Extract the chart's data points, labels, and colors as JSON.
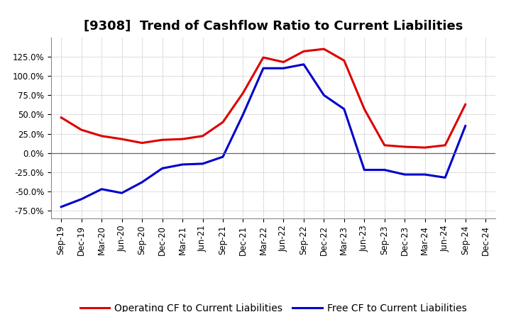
{
  "title": "[9308]  Trend of Cashflow Ratio to Current Liabilities",
  "x_labels": [
    "Sep-19",
    "Dec-19",
    "Mar-20",
    "Jun-20",
    "Sep-20",
    "Dec-20",
    "Mar-21",
    "Jun-21",
    "Sep-21",
    "Dec-21",
    "Mar-22",
    "Jun-22",
    "Sep-22",
    "Dec-22",
    "Mar-23",
    "Jun-23",
    "Sep-23",
    "Dec-23",
    "Mar-24",
    "Jun-24",
    "Sep-24",
    "Dec-24"
  ],
  "operating_cf": [
    0.46,
    0.3,
    0.22,
    0.18,
    0.13,
    0.17,
    0.18,
    0.22,
    0.4,
    0.78,
    1.24,
    1.18,
    1.32,
    1.35,
    1.2,
    0.57,
    0.1,
    0.08,
    0.07,
    0.1,
    0.63,
    null
  ],
  "free_cf": [
    -0.7,
    -0.6,
    -0.47,
    -0.52,
    -0.38,
    -0.2,
    -0.15,
    -0.14,
    -0.05,
    0.5,
    1.1,
    1.1,
    1.15,
    0.75,
    0.57,
    -0.22,
    -0.22,
    -0.28,
    -0.28,
    -0.32,
    0.35,
    null
  ],
  "ylim": [
    -0.85,
    1.5
  ],
  "yticks": [
    -0.75,
    -0.5,
    -0.25,
    0.0,
    0.25,
    0.5,
    0.75,
    1.0,
    1.25
  ],
  "operating_color": "#dd0000",
  "free_color": "#0000cc",
  "background_color": "#ffffff",
  "grid_color": "#999999",
  "legend_operating": "Operating CF to Current Liabilities",
  "legend_free": "Free CF to Current Liabilities",
  "title_fontsize": 13,
  "legend_fontsize": 10,
  "tick_fontsize": 8.5
}
